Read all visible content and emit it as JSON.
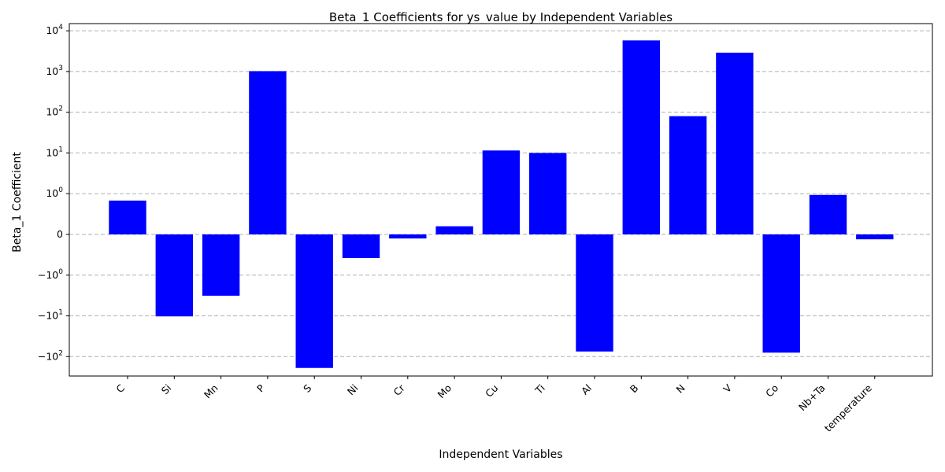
{
  "chart_data": {
    "type": "bar",
    "title": "Beta_1 Coefficients for ys_value by Independent Variables",
    "xlabel": "Independent Variables",
    "ylabel": "Beta_1 Coefficient",
    "y_scale": "symlog",
    "y_linthresh": 1,
    "ylim": [
      -300,
      15000
    ],
    "grid": "y",
    "bar_color": "#0000ff",
    "categories": [
      "C",
      "Si",
      "Mn",
      "P",
      "S",
      "Ni",
      "Cr",
      "Mo",
      "Cu",
      "Ti",
      "Al",
      "B",
      "N",
      "V",
      "Co",
      "Nb+Ta",
      "temperature"
    ],
    "values": [
      0.83,
      -10.3,
      -3.2,
      1020,
      -190,
      -0.58,
      -0.1,
      0.2,
      11.5,
      10.0,
      -75,
      5800,
      80,
      2900,
      -80,
      0.97,
      -0.12
    ],
    "y_ticks": [
      {
        "value": 10000,
        "base": "10",
        "exp": "4"
      },
      {
        "value": 1000,
        "base": "10",
        "exp": "3"
      },
      {
        "value": 100,
        "base": "10",
        "exp": "2"
      },
      {
        "value": 10,
        "base": "10",
        "exp": "1"
      },
      {
        "value": 1,
        "base": "10",
        "exp": "0"
      },
      {
        "value": 0,
        "base": "0",
        "exp": ""
      },
      {
        "value": -1,
        "base": "−10",
        "exp": "0"
      },
      {
        "value": -10,
        "base": "−10",
        "exp": "1"
      },
      {
        "value": -100,
        "base": "−10",
        "exp": "2"
      }
    ]
  }
}
